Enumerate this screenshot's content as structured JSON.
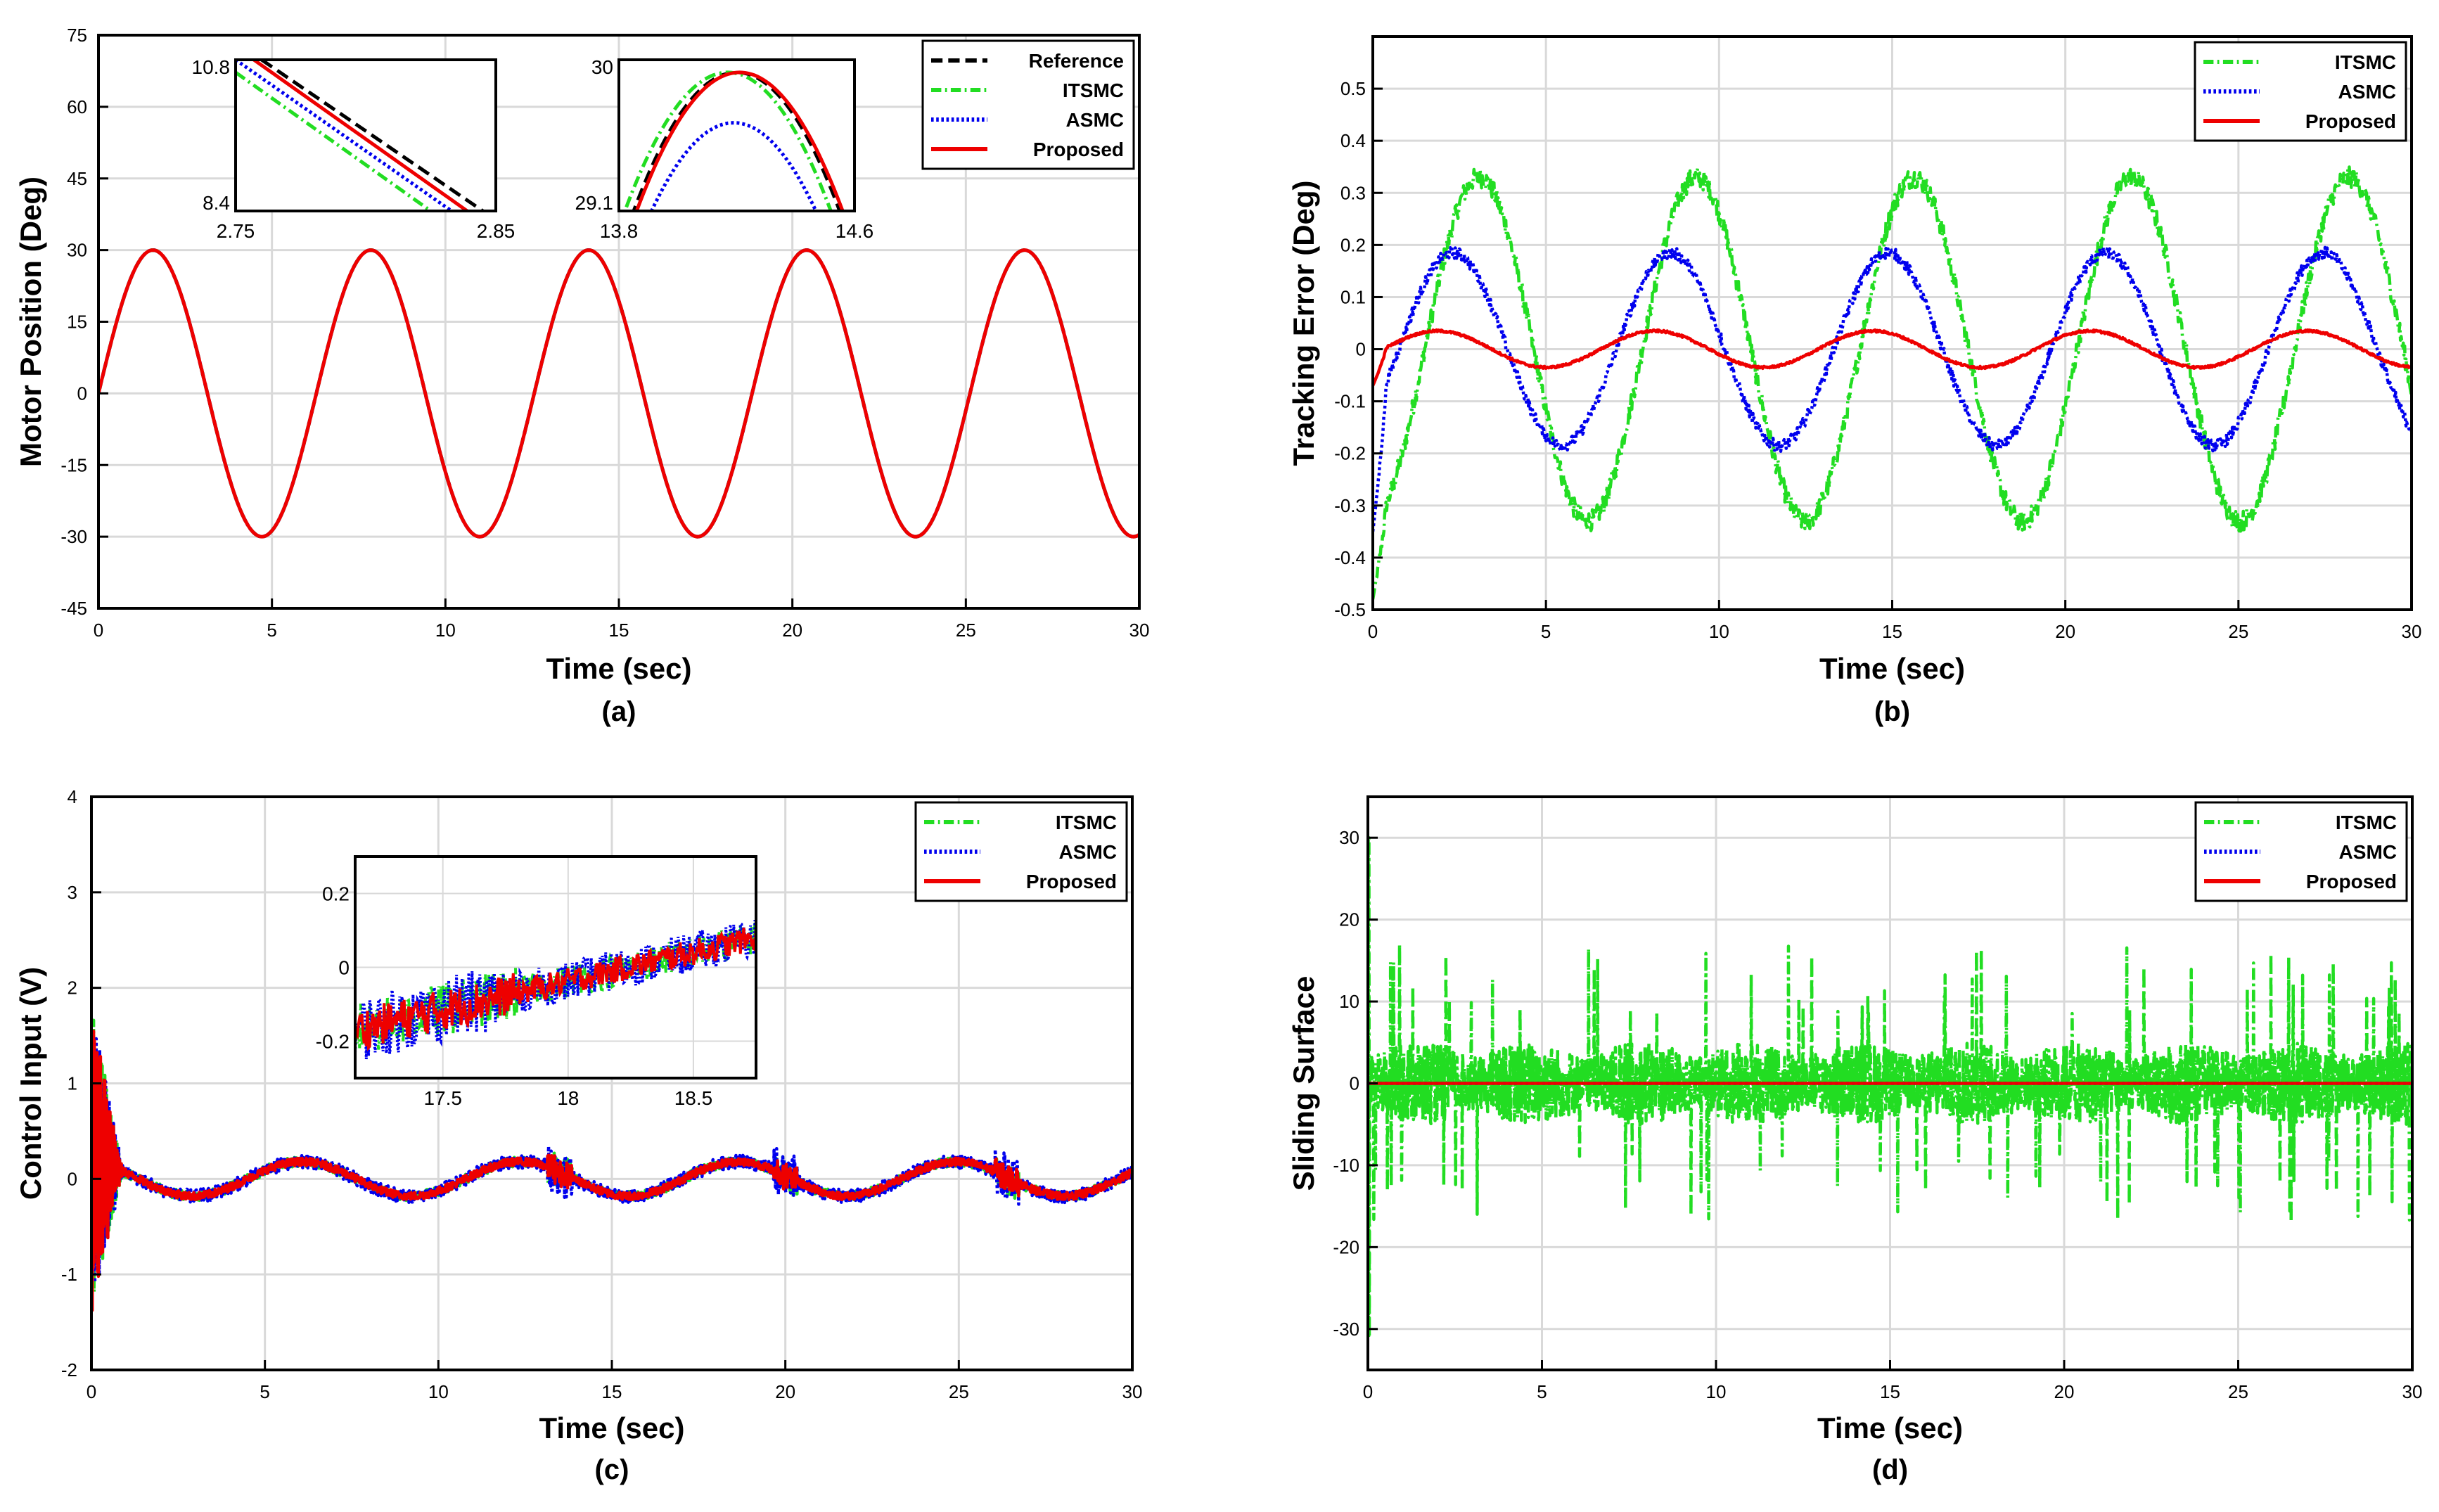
{
  "chart_data": [
    {
      "id": "a",
      "type": "line",
      "caption": "(a)",
      "xlabel": "Time (sec)",
      "ylabel": "Motor Position (Deg)",
      "xlim": [
        0,
        30
      ],
      "ylim": [
        -45,
        75
      ],
      "xticks": [
        0,
        5,
        10,
        15,
        20,
        25,
        30
      ],
      "yticks": [
        -45,
        -30,
        -15,
        0,
        15,
        30,
        45,
        60,
        75
      ],
      "grid": true,
      "legend_position": "top-right",
      "series": [
        {
          "name": "Reference",
          "color": "#000000",
          "style": "dashed",
          "model": "sine",
          "amp": 30,
          "period": 6.28
        },
        {
          "name": "ITSMC",
          "color": "#22dd22",
          "style": "dashdot",
          "model": "sine",
          "amp": 30,
          "period": 6.28
        },
        {
          "name": "ASMC",
          "color": "#0000ee",
          "style": "dotted",
          "model": "sine",
          "amp": 30,
          "period": 6.28
        },
        {
          "name": "Proposed",
          "color": "#ee0000",
          "style": "solid",
          "model": "sine",
          "amp": 30,
          "period": 6.28
        }
      ],
      "insets": [
        {
          "xlim": [
            2.75,
            2.85
          ],
          "ylim": [
            8.4,
            10.8
          ],
          "xticklabels": [
            "2.75",
            "2.85"
          ],
          "yticklabels": [
            "8.4",
            "10.8"
          ],
          "segments": [
            {
              "name": "Reference",
              "from": [
                2.76,
                10.8
              ],
              "to": [
                2.845,
                8.4
              ]
            },
            {
              "name": "ITSMC",
              "from": [
                2.75,
                10.6
              ],
              "to": [
                2.825,
                8.4
              ]
            },
            {
              "name": "ASMC",
              "from": [
                2.75,
                10.8
              ],
              "to": [
                2.833,
                8.4
              ]
            },
            {
              "name": "Proposed",
              "from": [
                2.757,
                10.8
              ],
              "to": [
                2.839,
                8.4
              ]
            }
          ]
        },
        {
          "xlim": [
            13.8,
            14.6
          ],
          "ylim": [
            28.9,
            30.1
          ],
          "xticklabels": [
            "13.8",
            "14.6"
          ],
          "yticklabels": [
            "29.1",
            "30"
          ],
          "peaks": [
            {
              "name": "Reference",
              "center": 14.2,
              "peak": 30.0
            },
            {
              "name": "ITSMC",
              "center": 14.17,
              "peak": 30.0
            },
            {
              "name": "ASMC",
              "center": 14.19,
              "peak": 29.6
            },
            {
              "name": "Proposed",
              "center": 14.21,
              "peak": 30.0
            }
          ]
        }
      ]
    },
    {
      "id": "b",
      "type": "line",
      "caption": "(b)",
      "xlabel": "Time (sec)",
      "ylabel": "Tracking Error (Deg)",
      "xlim": [
        0,
        30
      ],
      "ylim": [
        -0.5,
        0.6
      ],
      "xticks": [
        0,
        5,
        10,
        15,
        20,
        25,
        30
      ],
      "yticks": [
        -0.5,
        -0.4,
        -0.3,
        -0.2,
        -0.1,
        0,
        0.1,
        0.2,
        0.3,
        0.4,
        0.5
      ],
      "grid": true,
      "legend_position": "top-right",
      "series": [
        {
          "name": "ITSMC",
          "color": "#22dd22",
          "style": "dashdot",
          "model": "error",
          "amp": 0.33,
          "phase": 1.5,
          "start": -0.48
        },
        {
          "name": "ASMC",
          "color": "#0000ee",
          "style": "dotted",
          "model": "error",
          "amp": 0.185,
          "phase": 0.75,
          "start": -0.35
        },
        {
          "name": "Proposed",
          "color": "#ee0000",
          "style": "solid",
          "model": "error",
          "amp": 0.035,
          "phase": 0.3,
          "start": -0.07
        }
      ]
    },
    {
      "id": "c",
      "type": "line",
      "caption": "(c)",
      "xlabel": "Time (sec)",
      "ylabel": "Control Input (V)",
      "xlim": [
        0,
        30
      ],
      "ylim": [
        -2,
        4
      ],
      "xticks": [
        0,
        5,
        10,
        15,
        20,
        25,
        30
      ],
      "yticks": [
        -2,
        -1,
        0,
        1,
        2,
        3,
        4
      ],
      "grid": true,
      "legend_position": "top-right",
      "series": [
        {
          "name": "ITSMC",
          "color": "#22dd22",
          "style": "dashdot",
          "model": "control",
          "amp": 0.18,
          "noise": 0.05
        },
        {
          "name": "ASMC",
          "color": "#0000ee",
          "style": "dotted",
          "model": "control",
          "amp": 0.18,
          "noise": 0.07
        },
        {
          "name": "Proposed",
          "color": "#ee0000",
          "style": "solid",
          "model": "control",
          "amp": 0.18,
          "noise": 0.04
        }
      ],
      "insets": [
        {
          "xlim": [
            17.15,
            18.75
          ],
          "ylim": [
            -0.3,
            0.3
          ],
          "xticklabels": [
            "17.5",
            "18",
            "18.5"
          ],
          "xtickvalues": [
            17.5,
            18,
            18.5
          ],
          "yticklabels": [
            "-0.2",
            "0",
            "0.2"
          ],
          "ytickvalues": [
            -0.2,
            0,
            0.2
          ],
          "trend": {
            "from": [
              17.15,
              -0.17
            ],
            "to": [
              18.75,
              0.08
            ]
          }
        }
      ]
    },
    {
      "id": "d",
      "type": "line",
      "caption": "(d)",
      "xlabel": "Time (sec)",
      "ylabel": "Sliding Surface",
      "xlim": [
        0,
        30
      ],
      "ylim": [
        -35,
        35
      ],
      "xticks": [
        0,
        5,
        10,
        15,
        20,
        25,
        30
      ],
      "yticks": [
        -30,
        -20,
        -10,
        0,
        10,
        20,
        30
      ],
      "grid": true,
      "legend_position": "top-right",
      "series": [
        {
          "name": "ITSMC",
          "color": "#22dd22",
          "style": "dashdot",
          "model": "sliding",
          "band": 5,
          "spike": 17
        },
        {
          "name": "ASMC",
          "color": "#0000ee",
          "style": "dotted",
          "model": "flat"
        },
        {
          "name": "Proposed",
          "color": "#ee0000",
          "style": "solid",
          "model": "flat"
        }
      ]
    }
  ]
}
